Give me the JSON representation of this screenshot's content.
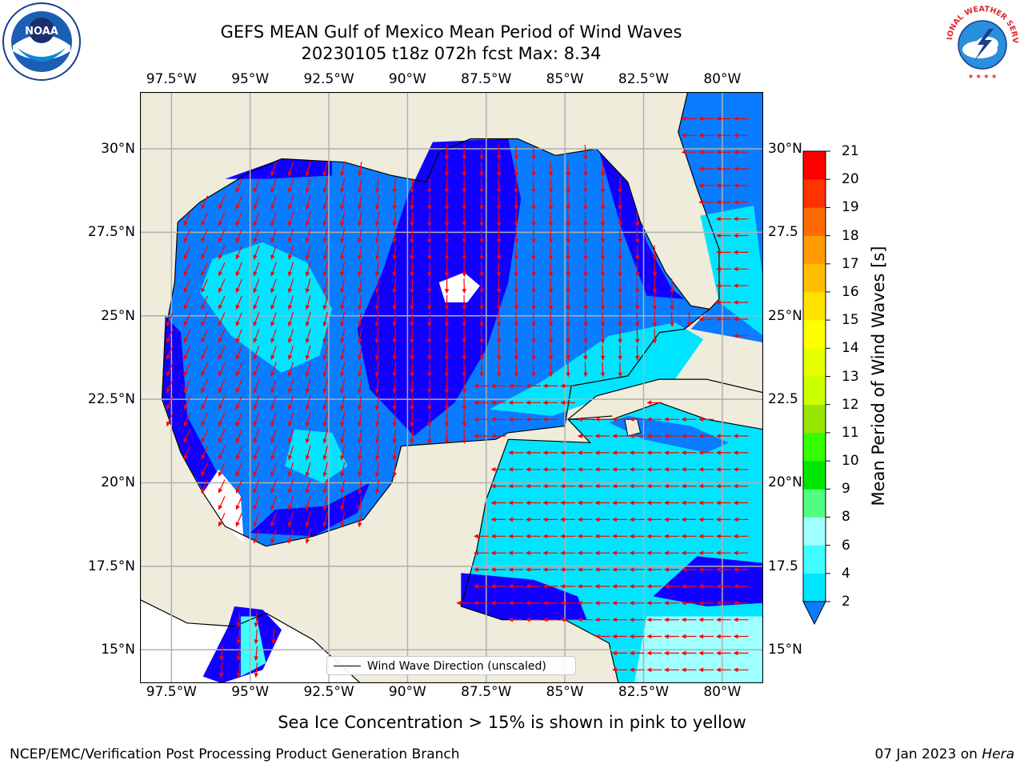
{
  "title": {
    "line1": "GEFS MEAN Gulf of Mexico Mean Period of Wind Waves",
    "line2": "20230105 t18z 072h fcst   Max: 8.34"
  },
  "map": {
    "lon_range": [
      -98.5,
      -78.7
    ],
    "lat_range": [
      14.0,
      31.7
    ],
    "lon_ticks": [
      {
        "value": -97.5,
        "label": "97.5°W"
      },
      {
        "value": -95,
        "label": "95°W"
      },
      {
        "value": -92.5,
        "label": "92.5°W"
      },
      {
        "value": -90,
        "label": "90°W"
      },
      {
        "value": -87.5,
        "label": "87.5°W"
      },
      {
        "value": -85,
        "label": "85°W"
      },
      {
        "value": -82.5,
        "label": "82.5°W"
      },
      {
        "value": -80,
        "label": "80°W"
      }
    ],
    "lat_ticks_left": [
      {
        "value": 30,
        "label": "30°N"
      },
      {
        "value": 27.5,
        "label": "27.5°N"
      },
      {
        "value": 25,
        "label": "25°N"
      },
      {
        "value": 22.5,
        "label": "22.5°N"
      },
      {
        "value": 20,
        "label": "20°N"
      },
      {
        "value": 17.5,
        "label": "17.5°N"
      },
      {
        "value": 15,
        "label": "15°N"
      }
    ],
    "lat_ticks_right": [
      {
        "value": 30,
        "label": "30°N"
      },
      {
        "value": 27.5,
        "label": "27.5"
      },
      {
        "value": 25,
        "label": "25°N"
      },
      {
        "value": 22.5,
        "label": "22.5"
      },
      {
        "value": 20,
        "label": "20°N"
      },
      {
        "value": 17.5,
        "label": "17.5"
      },
      {
        "value": 15,
        "label": "15°N"
      }
    ],
    "grid": true,
    "land_color": "#efecdc",
    "arrow_color": "#ff0000"
  },
  "legend": {
    "label": "Wind Wave Direction (unscaled)",
    "placement": "lower-center"
  },
  "colorbar": {
    "label": "Mean Period of Wind Waves [s]",
    "ticks": [
      "2",
      "4",
      "6",
      "8",
      "9",
      "10",
      "11",
      "12",
      "13",
      "14",
      "15",
      "16",
      "17",
      "18",
      "19",
      "20",
      "21"
    ],
    "colors": [
      "#0a7cff",
      "#00e5ff",
      "#3ffcff",
      "#a0ffff",
      "#50ff80",
      "#00e600",
      "#33ff00",
      "#99e600",
      "#ccff00",
      "#e5ff00",
      "#ffff00",
      "#ffe100",
      "#ffbe00",
      "#ff9b00",
      "#ff6a00",
      "#ff3200",
      "#ff0000"
    ],
    "extend_min_color": "#1200ff"
  },
  "colors": {
    "period_lt2": "#1200ff",
    "period_2_4": "#0a7cff",
    "period_4_6": "#00e5ff",
    "period_6_8": "#3ffcff",
    "period_8_9": "#a0ffff"
  },
  "caption": "Sea Ice Concentration > 15% is shown in pink to yellow",
  "footer": {
    "left": "NCEP/EMC/Verification Post Processing Product Generation Branch",
    "right_date": "07 Jan 2023 on ",
    "right_host": "Hera"
  },
  "logos": {
    "left": "noaa-logo",
    "left_text": "NOAA",
    "right": "nws-logo",
    "right_text": "NATIONAL WEATHER SERVICE"
  }
}
